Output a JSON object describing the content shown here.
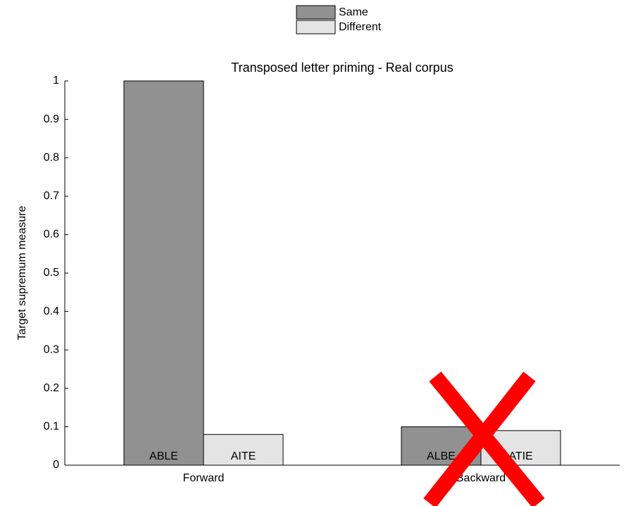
{
  "chart_data": {
    "type": "bar",
    "title": "Transposed letter priming - Real corpus",
    "y_label": "Target supremum measure",
    "categories": [
      "Forward",
      "Backward"
    ],
    "series": [
      {
        "name": "Same",
        "color": "#919191",
        "values": [
          1,
          0.1
        ],
        "bar_labels": [
          "ABLE",
          "ALBE"
        ]
      },
      {
        "name": "Different",
        "color": "#e4e4e4",
        "values": [
          0.08,
          0.09
        ],
        "bar_labels": [
          "AITE",
          "ATIE"
        ]
      }
    ],
    "ylim": [
      0,
      1
    ],
    "yticks": [
      0,
      0.1,
      0.2,
      0.3,
      0.4,
      0.5,
      0.6,
      0.7,
      0.8,
      0.9,
      1
    ],
    "legend": "top"
  }
}
